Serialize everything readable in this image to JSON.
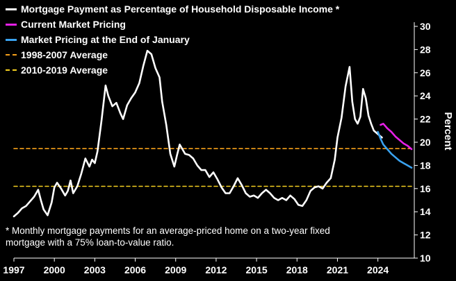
{
  "chart_data": {
    "type": "line",
    "title": "",
    "xlabel": "",
    "ylabel": "Percent",
    "xlim": [
      1997,
      2026.7
    ],
    "ylim": [
      10,
      30
    ],
    "yticks": [
      10,
      12,
      14,
      16,
      18,
      20,
      22,
      24,
      26,
      28,
      30
    ],
    "xticks": [
      1997,
      2000,
      2003,
      2006,
      2009,
      2012,
      2015,
      2018,
      2021,
      2024
    ],
    "grid": false,
    "legend_position": "top-left",
    "series": [
      {
        "name": "Mortgage Payment as Percentage of Household Disposable Income *",
        "color": "#ffffff",
        "style": "solid",
        "x": [
          1997.0,
          1997.3,
          1997.6,
          1997.9,
          1998.2,
          1998.5,
          1998.8,
          1999.0,
          1999.2,
          1999.5,
          1999.8,
          2000.0,
          2000.2,
          2000.5,
          2000.8,
          2001.0,
          2001.2,
          2001.4,
          2001.7,
          2002.0,
          2002.3,
          2002.6,
          2002.8,
          2003.0,
          2003.2,
          2003.5,
          2003.8,
          2004.0,
          2004.3,
          2004.6,
          2004.9,
          2005.1,
          2005.4,
          2005.7,
          2006.0,
          2006.3,
          2006.6,
          2006.9,
          2007.2,
          2007.5,
          2007.8,
          2008.0,
          2008.3,
          2008.6,
          2008.9,
          2009.1,
          2009.3,
          2009.5,
          2009.7,
          2010.0,
          2010.3,
          2010.6,
          2010.9,
          2011.2,
          2011.5,
          2011.8,
          2012.1,
          2012.4,
          2012.7,
          2013.0,
          2013.3,
          2013.6,
          2013.9,
          2014.2,
          2014.5,
          2014.8,
          2015.1,
          2015.4,
          2015.7,
          2016.0,
          2016.3,
          2016.6,
          2016.9,
          2017.2,
          2017.5,
          2017.8,
          2018.1,
          2018.4,
          2018.7,
          2019.0,
          2019.3,
          2019.6,
          2019.9,
          2020.2,
          2020.5,
          2020.8,
          2021.0,
          2021.3,
          2021.6,
          2021.9,
          2022.1,
          2022.3,
          2022.5,
          2022.7,
          2022.9,
          2023.1,
          2023.3,
          2023.5,
          2023.7,
          2023.9,
          2024.1,
          2024.3
        ],
        "y": [
          13.6,
          13.9,
          14.3,
          14.5,
          14.9,
          15.3,
          15.9,
          15.0,
          14.2,
          13.7,
          14.8,
          16.1,
          16.5,
          16.0,
          15.4,
          15.8,
          16.7,
          15.6,
          16.2,
          17.3,
          18.6,
          17.9,
          18.5,
          18.2,
          19.2,
          21.9,
          24.9,
          24.0,
          23.1,
          23.4,
          22.5,
          22.0,
          23.2,
          23.8,
          24.3,
          25.1,
          26.6,
          27.9,
          27.6,
          26.4,
          25.6,
          23.5,
          21.5,
          19.0,
          17.9,
          18.9,
          19.8,
          19.4,
          19.0,
          18.9,
          18.6,
          18.0,
          17.6,
          17.6,
          17.0,
          17.4,
          16.8,
          16.1,
          15.6,
          15.6,
          16.2,
          16.9,
          16.3,
          15.6,
          15.3,
          15.4,
          15.2,
          15.6,
          15.9,
          15.6,
          15.2,
          15.0,
          15.2,
          15.0,
          15.4,
          15.1,
          14.6,
          14.5,
          15.0,
          15.8,
          16.1,
          16.2,
          16.0,
          16.5,
          16.9,
          18.5,
          20.4,
          22.1,
          24.8,
          26.5,
          23.5,
          22.0,
          21.6,
          22.2,
          24.6,
          23.8,
          22.3,
          21.6,
          21.0,
          20.8,
          20.6,
          20.4
        ]
      },
      {
        "name": "Current Market Pricing",
        "color": "#e620e6",
        "style": "solid",
        "x": [
          2024.2,
          2024.4,
          2024.7,
          2025.0,
          2025.3,
          2025.6,
          2025.9,
          2026.2,
          2026.5
        ],
        "y": [
          21.5,
          21.6,
          21.2,
          20.9,
          20.5,
          20.2,
          19.9,
          19.7,
          19.4
        ]
      },
      {
        "name": "Market Pricing at the End of January",
        "color": "#3aa3f0",
        "style": "solid",
        "x": [
          2024.0,
          2024.2,
          2024.4,
          2024.7,
          2025.0,
          2025.3,
          2025.6,
          2025.9,
          2026.2,
          2026.5
        ],
        "y": [
          20.9,
          20.3,
          19.8,
          19.4,
          19.0,
          18.7,
          18.4,
          18.2,
          18.0,
          17.8
        ]
      },
      {
        "name": "1998-2007 Average",
        "color": "#f5a01a",
        "style": "dashed",
        "x": [
          1997.0,
          2026.7
        ],
        "y": [
          19.45,
          19.45
        ]
      },
      {
        "name": "2010-2019 Average",
        "color": "#f5d020",
        "style": "dashed",
        "x": [
          1997.0,
          2026.7
        ],
        "y": [
          16.2,
          16.2
        ]
      }
    ]
  },
  "footnote": {
    "line1": "* Monthly mortgage payments for an average-priced home on a two-year fixed",
    "line2": "mortgage with a 75% loan-to-value ratio."
  }
}
